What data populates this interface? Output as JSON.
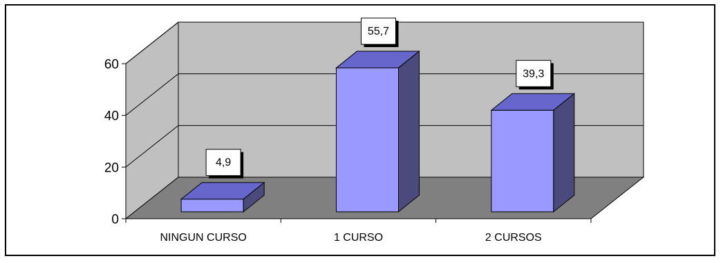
{
  "chart_data": {
    "type": "bar",
    "categories": [
      "NINGUN CURSO",
      "1 CURSO",
      "2 CURSOS"
    ],
    "values": [
      4.9,
      55.7,
      39.3
    ],
    "data_labels": [
      "4,9",
      "55,7",
      "39,3"
    ],
    "yticks": [
      "0",
      "20",
      "40",
      "60"
    ],
    "ytick_values": [
      0,
      20,
      40,
      60
    ],
    "ylim": [
      0,
      60
    ],
    "title": "",
    "xlabel": "",
    "ylabel": "",
    "grid": true,
    "legend": "none",
    "style": "3d",
    "colors": {
      "bar_front": "#9999ff",
      "bar_top": "#6666cc",
      "bar_side": "#4a4a7d",
      "back_wall": "#c0c0c0",
      "side_wall": "#c0c0c0",
      "floor": "#808080",
      "gridline": "#000000"
    }
  }
}
